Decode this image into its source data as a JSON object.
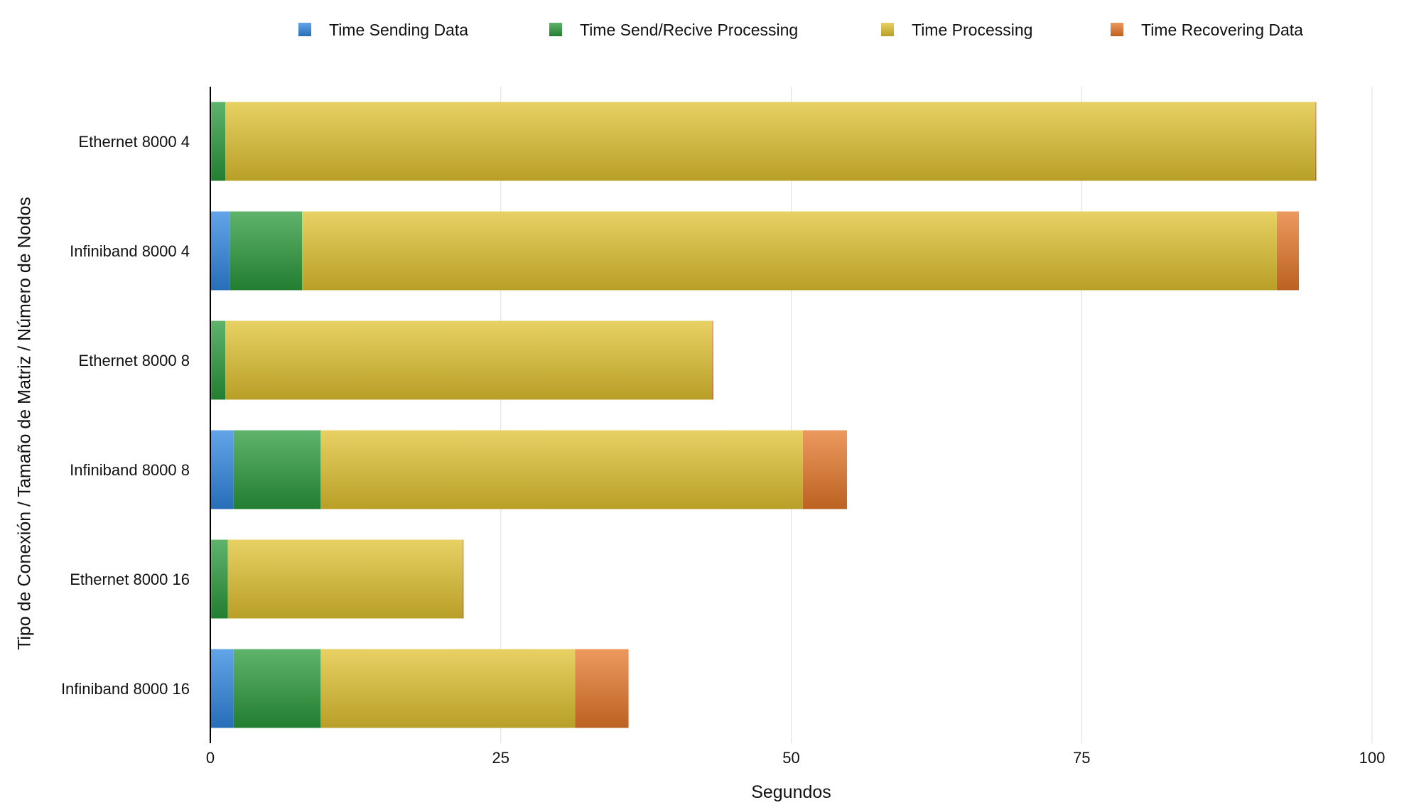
{
  "chart_data": {
    "type": "bar",
    "orientation": "horizontal",
    "stacked": true,
    "title": "",
    "xlabel": "Segundos",
    "ylabel": "Tipo de Conexión / Tamaño de Matriz / Número de Nodos",
    "xlim": [
      0,
      100
    ],
    "xticks": [
      0,
      25,
      50,
      75,
      100
    ],
    "grid": true,
    "legend_position": "top",
    "categories": [
      "Ethernet 8000 4",
      "Infiniband 8000 4",
      "Ethernet 8000 8",
      "Infiniband 8000 8",
      "Ethernet 8000 16",
      "Infiniband 8000 16"
    ],
    "series": [
      {
        "name": "Time Sending Data",
        "color": "#2f86e0",
        "values": [
          0.1,
          1.7,
          0.1,
          2.0,
          0.1,
          2.0
        ]
      },
      {
        "name": "Time Send/Recive Processing",
        "color": "#2a9a3a",
        "values": [
          1.2,
          6.2,
          1.2,
          7.5,
          1.4,
          7.5
        ]
      },
      {
        "name": "Time Processing",
        "color": "#e0c230",
        "values": [
          93.8,
          83.9,
          41.9,
          41.5,
          20.2,
          21.9
        ]
      },
      {
        "name": "Time Recovering Data",
        "color": "#e5772a",
        "values": [
          0.1,
          1.9,
          0.1,
          3.8,
          0.1,
          4.6
        ]
      }
    ]
  }
}
